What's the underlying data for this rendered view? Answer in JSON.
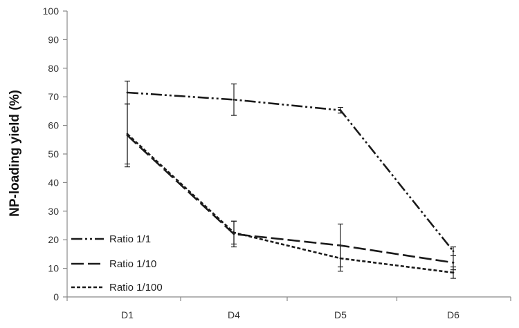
{
  "chart_data": {
    "type": "line",
    "title": "",
    "xlabel": "",
    "ylabel": "NP-loading yield (%)",
    "categories": [
      "D1",
      "D4",
      "D5",
      "D6"
    ],
    "ylim": [
      0,
      100
    ],
    "yticks": [
      0,
      10,
      20,
      30,
      40,
      50,
      60,
      70,
      80,
      90,
      100
    ],
    "grid": false,
    "legend_position": "bottom-left",
    "series": [
      {
        "name": "Ratio 1/1",
        "values": [
          71.5,
          69,
          65.3,
          16
        ],
        "error": [
          4,
          5.5,
          1,
          1.5
        ],
        "line_style": "dash-dot-dot",
        "color": "#1a1a1a"
      },
      {
        "name": "Ratio 1/10",
        "values": [
          56.5,
          22,
          18,
          12
        ],
        "error": [
          11,
          4.5,
          7.5,
          2.5
        ],
        "line_style": "long-dash",
        "color": "#1a1a1a"
      },
      {
        "name": "Ratio 1/100",
        "values": [
          57,
          22.5,
          13.5,
          8.5
        ],
        "error": [
          10.5,
          4,
          4.5,
          2
        ],
        "line_style": "short-dash",
        "color": "#1a1a1a"
      }
    ]
  }
}
